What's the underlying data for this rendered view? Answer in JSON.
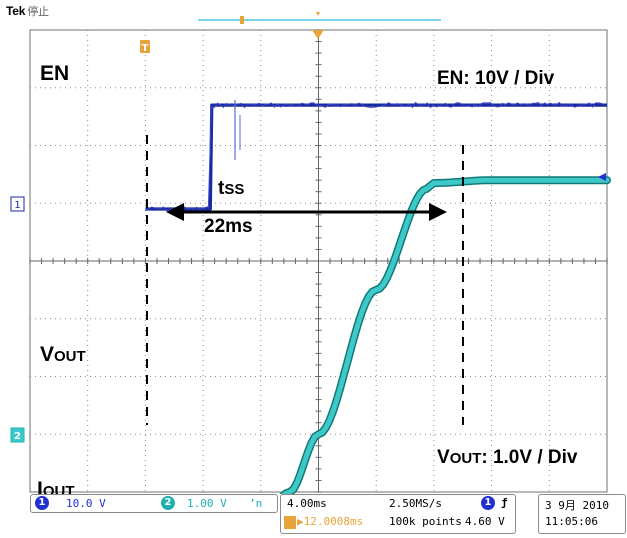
{
  "topbar": {
    "brand": "Tek",
    "state": "停止"
  },
  "annotations": {
    "en_label": "EN",
    "en_scale": "EN: 10V / Div",
    "tss_main": "t",
    "tss_sub": "SS",
    "tss_value": "22ms",
    "vout_main": "V",
    "vout_sub": "OUT",
    "vout_scale_main": "V",
    "vout_scale_sub": "OUT",
    "vout_scale_rest": ": 1.0V / Div",
    "iout_main": "I",
    "iout_sub": "OUT"
  },
  "markers": {
    "trigger_marker": "T",
    "ch1_marker": "1",
    "ch2_marker": "2"
  },
  "status": {
    "ch1_num": "1",
    "ch1_scale": "10.0 V",
    "ch2_num": "2",
    "ch2_scale": "1.00 V",
    "ch2_bw": "ʼn",
    "timebase": "4.00ms",
    "sample_rate": "2.50MS/s",
    "trigger_pos": "▶12.0008ms",
    "record_length": "100k points",
    "trig_source": "1",
    "trig_slope": "ƒ",
    "trig_level": "4.60 V",
    "date": "3 9月  2010",
    "time": "11:05:06"
  },
  "colors": {
    "ch1": "#1a2aa0",
    "ch2": "#19b8b8",
    "ch2_fill": "#3ec9c9",
    "trigger": "#e8a33a",
    "grid": "#8c8c8c",
    "status_ch1": "#2030d0",
    "status_ch2": "#1fb0b0"
  },
  "chart_data": {
    "type": "line",
    "x_unit": "ms",
    "x_div": 4.0,
    "series": [
      {
        "name": "EN",
        "volts_per_div": 10,
        "x": [
          -12,
          -7.5,
          -7.4,
          0,
          8,
          16,
          20
        ],
        "y": [
          0.9,
          0.9,
          2.7,
          2.7,
          2.7,
          2.7,
          2.7
        ]
      },
      {
        "name": "VOUT",
        "volts_per_div": 1.0,
        "x": [
          -12,
          -7.5,
          -3.5,
          -2,
          0,
          4,
          7.5,
          8,
          12,
          16,
          20
        ],
        "y": [
          -4.3,
          -4.3,
          -4.3,
          -4.0,
          -3.0,
          -0.5,
          1.25,
          1.35,
          1.4,
          1.4,
          1.4
        ]
      }
    ],
    "annotations": [
      "tSS",
      "22ms"
    ]
  }
}
